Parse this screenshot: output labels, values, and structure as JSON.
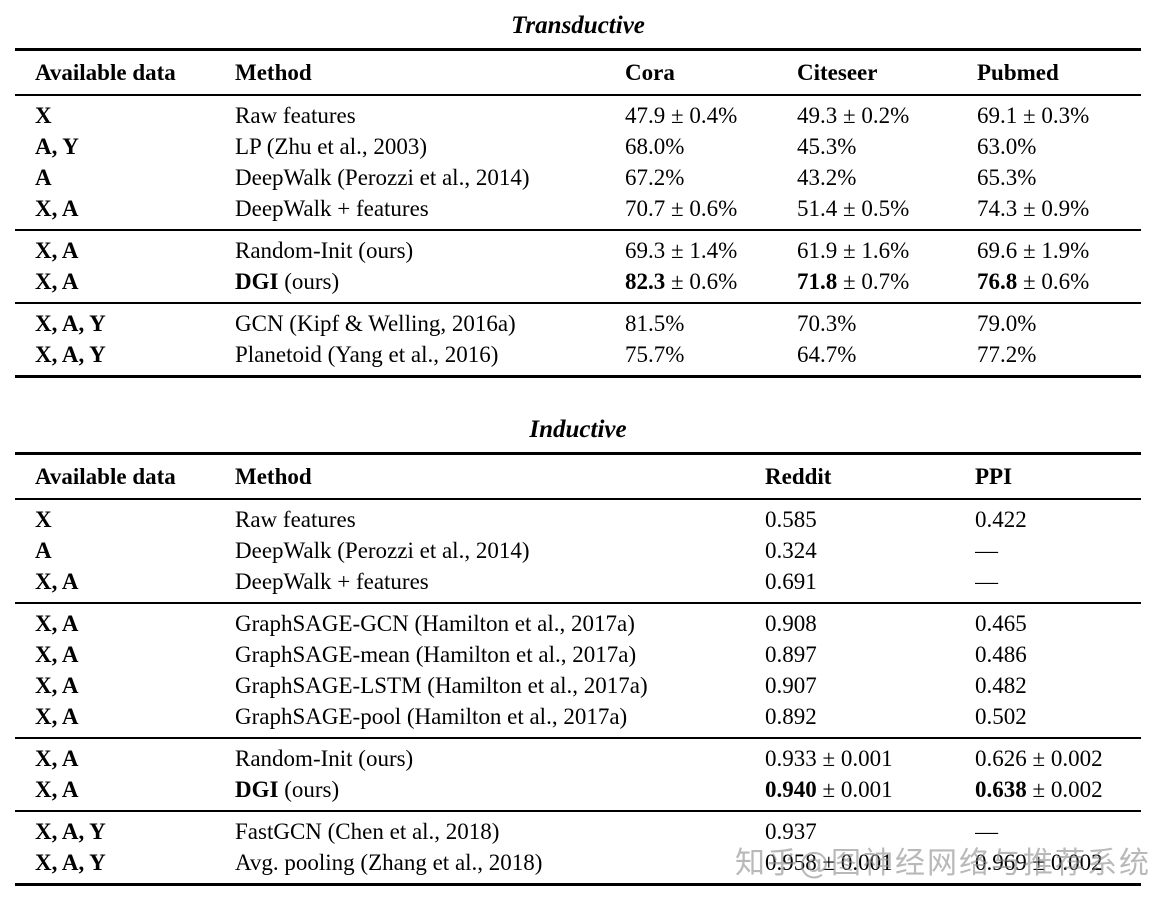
{
  "page": {
    "background": "#ffffff",
    "text_color": "#000000"
  },
  "tables": [
    {
      "title": "Transductive",
      "headers": [
        "Available data",
        "Method",
        "Cora",
        "Citeseer",
        "Pubmed"
      ],
      "groups": [
        {
          "rows": [
            {
              "avail": "X",
              "method": {
                "bold": "",
                "normal": "Raw features"
              },
              "values": [
                {
                  "bold": "",
                  "normal": "47.9 ± 0.4%"
                },
                {
                  "bold": "",
                  "normal": "49.3 ± 0.2%"
                },
                {
                  "bold": "",
                  "normal": "69.1 ± 0.3%"
                }
              ]
            },
            {
              "avail": "A, Y",
              "method": {
                "bold": "",
                "normal": "LP (Zhu et al., 2003)"
              },
              "values": [
                {
                  "bold": "",
                  "normal": "68.0%"
                },
                {
                  "bold": "",
                  "normal": "45.3%"
                },
                {
                  "bold": "",
                  "normal": "63.0%"
                }
              ]
            },
            {
              "avail": "A",
              "method": {
                "bold": "",
                "normal": "DeepWalk (Perozzi et al., 2014)"
              },
              "values": [
                {
                  "bold": "",
                  "normal": "67.2%"
                },
                {
                  "bold": "",
                  "normal": "43.2%"
                },
                {
                  "bold": "",
                  "normal": "65.3%"
                }
              ]
            },
            {
              "avail": "X, A",
              "method": {
                "bold": "",
                "normal": "DeepWalk + features"
              },
              "values": [
                {
                  "bold": "",
                  "normal": "70.7 ± 0.6%"
                },
                {
                  "bold": "",
                  "normal": "51.4 ± 0.5%"
                },
                {
                  "bold": "",
                  "normal": "74.3 ± 0.9%"
                }
              ]
            }
          ]
        },
        {
          "rows": [
            {
              "avail": "X, A",
              "method": {
                "bold": "",
                "normal": "Random-Init (ours)"
              },
              "values": [
                {
                  "bold": "",
                  "normal": "69.3 ± 1.4%"
                },
                {
                  "bold": "",
                  "normal": "61.9 ± 1.6%"
                },
                {
                  "bold": "",
                  "normal": "69.6 ± 1.9%"
                }
              ]
            },
            {
              "avail": "X, A",
              "method": {
                "bold": "DGI",
                "normal": " (ours)"
              },
              "values": [
                {
                  "bold": "82.3",
                  "normal": " ± 0.6%"
                },
                {
                  "bold": "71.8",
                  "normal": " ± 0.7%"
                },
                {
                  "bold": "76.8",
                  "normal": " ± 0.6%"
                }
              ]
            }
          ]
        },
        {
          "rows": [
            {
              "avail": "X, A, Y",
              "method": {
                "bold": "",
                "normal": "GCN (Kipf & Welling, 2016a)"
              },
              "values": [
                {
                  "bold": "",
                  "normal": "81.5%"
                },
                {
                  "bold": "",
                  "normal": "70.3%"
                },
                {
                  "bold": "",
                  "normal": "79.0%"
                }
              ]
            },
            {
              "avail": "X, A, Y",
              "method": {
                "bold": "",
                "normal": "Planetoid (Yang et al., 2016)"
              },
              "values": [
                {
                  "bold": "",
                  "normal": "75.7%"
                },
                {
                  "bold": "",
                  "normal": "64.7%"
                },
                {
                  "bold": "",
                  "normal": "77.2%"
                }
              ]
            }
          ]
        }
      ]
    },
    {
      "title": "Inductive",
      "headers": [
        "Available data",
        "Method",
        "Reddit",
        "PPI"
      ],
      "groups": [
        {
          "rows": [
            {
              "avail": "X",
              "method": {
                "bold": "",
                "normal": "Raw features"
              },
              "values": [
                {
                  "bold": "",
                  "normal": "0.585"
                },
                {
                  "bold": "",
                  "normal": "0.422"
                }
              ]
            },
            {
              "avail": "A",
              "method": {
                "bold": "",
                "normal": "DeepWalk (Perozzi et al., 2014)"
              },
              "values": [
                {
                  "bold": "",
                  "normal": "0.324"
                },
                {
                  "bold": "",
                  "normal": "—"
                }
              ]
            },
            {
              "avail": "X, A",
              "method": {
                "bold": "",
                "normal": "DeepWalk + features"
              },
              "values": [
                {
                  "bold": "",
                  "normal": "0.691"
                },
                {
                  "bold": "",
                  "normal": "—"
                }
              ]
            }
          ]
        },
        {
          "rows": [
            {
              "avail": "X, A",
              "method": {
                "bold": "",
                "normal": "GraphSAGE-GCN (Hamilton et al., 2017a)"
              },
              "values": [
                {
                  "bold": "",
                  "normal": "0.908"
                },
                {
                  "bold": "",
                  "normal": "0.465"
                }
              ]
            },
            {
              "avail": "X, A",
              "method": {
                "bold": "",
                "normal": "GraphSAGE-mean (Hamilton et al., 2017a)"
              },
              "values": [
                {
                  "bold": "",
                  "normal": "0.897"
                },
                {
                  "bold": "",
                  "normal": "0.486"
                }
              ]
            },
            {
              "avail": "X, A",
              "method": {
                "bold": "",
                "normal": "GraphSAGE-LSTM (Hamilton et al., 2017a)"
              },
              "values": [
                {
                  "bold": "",
                  "normal": "0.907"
                },
                {
                  "bold": "",
                  "normal": "0.482"
                }
              ]
            },
            {
              "avail": "X, A",
              "method": {
                "bold": "",
                "normal": "GraphSAGE-pool (Hamilton et al., 2017a)"
              },
              "values": [
                {
                  "bold": "",
                  "normal": "0.892"
                },
                {
                  "bold": "",
                  "normal": "0.502"
                }
              ]
            }
          ]
        },
        {
          "rows": [
            {
              "avail": "X, A",
              "method": {
                "bold": "",
                "normal": "Random-Init (ours)"
              },
              "values": [
                {
                  "bold": "",
                  "normal": "0.933 ± 0.001"
                },
                {
                  "bold": "",
                  "normal": "0.626 ± 0.002"
                }
              ]
            },
            {
              "avail": "X, A",
              "method": {
                "bold": "DGI",
                "normal": " (ours)"
              },
              "values": [
                {
                  "bold": "0.940",
                  "normal": " ± 0.001"
                },
                {
                  "bold": "0.638",
                  "normal": " ± 0.002"
                }
              ]
            }
          ]
        },
        {
          "rows": [
            {
              "avail": "X, A, Y",
              "method": {
                "bold": "",
                "normal": "FastGCN (Chen et al., 2018)"
              },
              "values": [
                {
                  "bold": "",
                  "normal": "0.937"
                },
                {
                  "bold": "",
                  "normal": "—"
                }
              ]
            },
            {
              "avail": "X, A, Y",
              "method": {
                "bold": "",
                "normal": "Avg. pooling (Zhang et al., 2018)"
              },
              "values": [
                {
                  "bold": "",
                  "normal": "0.958 ± 0.001"
                },
                {
                  "bold": "",
                  "normal": "0.969 ± 0.002"
                }
              ]
            }
          ]
        }
      ]
    }
  ],
  "watermark": {
    "text": "知乎@图神经网络与推荐系统",
    "color": "#8c8c8c"
  }
}
